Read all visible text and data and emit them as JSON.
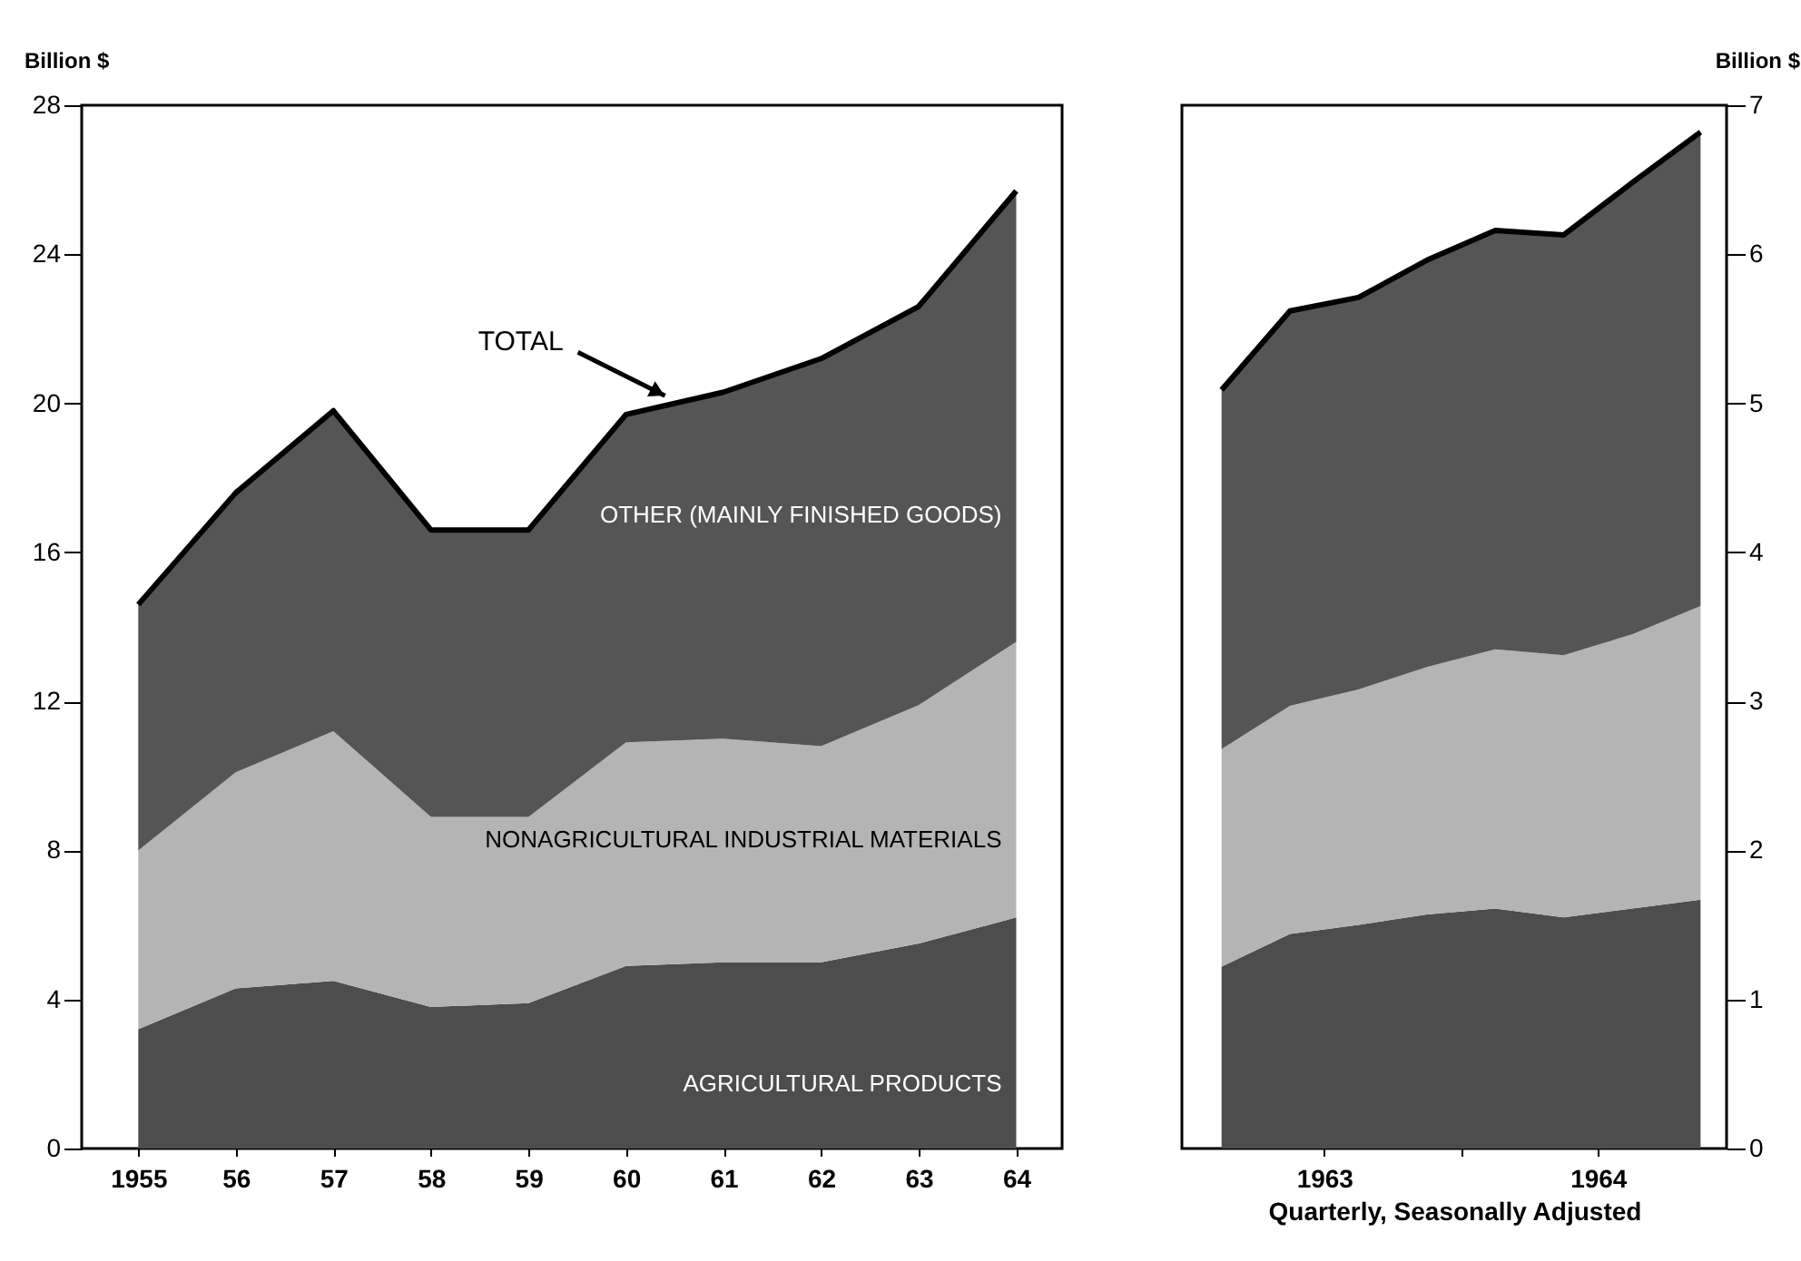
{
  "chart_data": [
    {
      "type": "area",
      "stacked": true,
      "ylabel": "Billion $",
      "x": [
        1955,
        1956,
        1957,
        1958,
        1959,
        1960,
        1961,
        1962,
        1963,
        1964
      ],
      "series": [
        {
          "name": "AGRICULTURAL PRODUCTS",
          "color": "#4d4d4d",
          "values": [
            3.2,
            4.3,
            4.5,
            3.8,
            3.9,
            4.9,
            5.0,
            5.0,
            5.5,
            6.2
          ]
        },
        {
          "name": "NONAGRICULTURAL INDUSTRIAL MATERIALS",
          "color": "#b4b4b4",
          "values": [
            4.8,
            5.8,
            6.7,
            5.1,
            5.0,
            6.0,
            6.0,
            5.8,
            6.4,
            7.4
          ]
        },
        {
          "name": "OTHER (MAINLY FINISHED GOODS)",
          "color": "#555555",
          "values": [
            6.6,
            7.5,
            8.6,
            7.7,
            7.7,
            8.8,
            9.3,
            10.4,
            10.7,
            12.1
          ]
        }
      ],
      "xlim": [
        1954.42,
        1964.47
      ],
      "xticks": [
        1955,
        {
          "value": 1956,
          "label": "56"
        },
        {
          "value": 1957,
          "label": "57"
        },
        {
          "value": 1958,
          "label": "58"
        },
        {
          "value": 1959,
          "label": "59"
        },
        {
          "value": 1960,
          "label": "60"
        },
        {
          "value": 1961,
          "label": "61"
        },
        {
          "value": 1962,
          "label": "62"
        },
        {
          "value": 1963,
          "label": "63"
        },
        {
          "value": 1964,
          "label": "64"
        }
      ],
      "ylim": [
        0,
        28
      ],
      "yticks": [
        0,
        4,
        8,
        12,
        16,
        20,
        24,
        28
      ],
      "annotations": [
        {
          "text": "TOTAL",
          "x": 1960.4,
          "y": 20.2
        }
      ]
    },
    {
      "type": "area",
      "stacked": true,
      "ylabel": "Billion $",
      "xlabel": "Quarterly, Seasonally Adjusted",
      "x": [
        1963.125,
        1963.375,
        1963.625,
        1963.875,
        1964.125,
        1964.375,
        1964.625,
        1964.875
      ],
      "series": [
        {
          "color": "#4d4d4d",
          "values": [
            1.22,
            1.44,
            1.5,
            1.57,
            1.61,
            1.55,
            1.61,
            1.67
          ]
        },
        {
          "color": "#b4b4b4",
          "values": [
            1.46,
            1.53,
            1.58,
            1.66,
            1.74,
            1.76,
            1.84,
            1.97
          ]
        },
        {
          "color": "#555555",
          "values": [
            2.41,
            2.65,
            2.63,
            2.73,
            2.81,
            2.82,
            3.03,
            3.18
          ]
        }
      ],
      "xlim": [
        1962.98,
        1964.97
      ],
      "xticks": [
        {
          "value": 1963.5,
          "label": "1963"
        },
        {
          "value": 1964,
          "label": null
        },
        {
          "value": 1964.5,
          "label": "1964"
        }
      ],
      "ylim": [
        0,
        7
      ],
      "yticks": [
        0,
        1,
        2,
        3,
        4,
        5,
        6,
        7
      ]
    }
  ]
}
